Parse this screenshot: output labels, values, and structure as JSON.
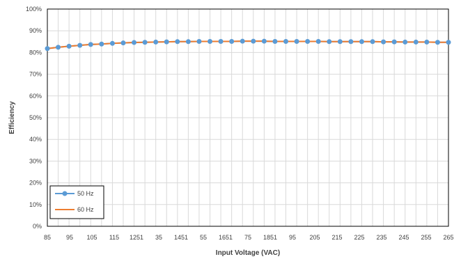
{
  "chart_data": {
    "type": "line",
    "xlabel": "Input Voltage (VAC)",
    "ylabel": "Efficiency",
    "ylim": [
      0,
      100
    ],
    "y_ticks": [
      "0%",
      "10%",
      "20%",
      "30%",
      "40%",
      "50%",
      "60%",
      "70%",
      "80%",
      "90%",
      "100%"
    ],
    "x_tick_labels": [
      "85",
      "95",
      "105",
      "115",
      "1251",
      "35",
      "1451",
      "55",
      "1651",
      "75",
      "1851",
      "95",
      "205",
      "215",
      "225",
      "235",
      "245",
      "255",
      "265"
    ],
    "grid": true,
    "legend_position": "bottom-left",
    "series": [
      {
        "name": "50 Hz",
        "color": "#5b9bd5",
        "marker": "circle",
        "values": [
          81.8,
          82.4,
          82.9,
          83.3,
          83.7,
          83.9,
          84.2,
          84.4,
          84.6,
          84.7,
          84.8,
          84.9,
          85.0,
          85.0,
          85.1,
          85.1,
          85.1,
          85.1,
          85.2,
          85.2,
          85.2,
          85.1,
          85.1,
          85.1,
          85.1,
          85.1,
          85.0,
          85.0,
          85.0,
          85.0,
          85.0,
          84.9,
          84.9,
          84.8,
          84.8,
          84.8,
          84.7,
          84.7
        ]
      },
      {
        "name": "60 Hz",
        "color": "#ed7d31",
        "marker": "none",
        "values": [
          81.8,
          82.4,
          82.9,
          83.3,
          83.7,
          83.9,
          84.2,
          84.4,
          84.6,
          84.7,
          84.8,
          84.9,
          85.0,
          85.0,
          85.1,
          85.1,
          85.1,
          85.1,
          85.2,
          85.2,
          85.2,
          85.1,
          85.1,
          85.1,
          85.1,
          85.1,
          85.0,
          85.0,
          85.0,
          85.0,
          85.0,
          84.9,
          84.9,
          84.8,
          84.8,
          84.8,
          84.7,
          84.7
        ]
      }
    ]
  }
}
